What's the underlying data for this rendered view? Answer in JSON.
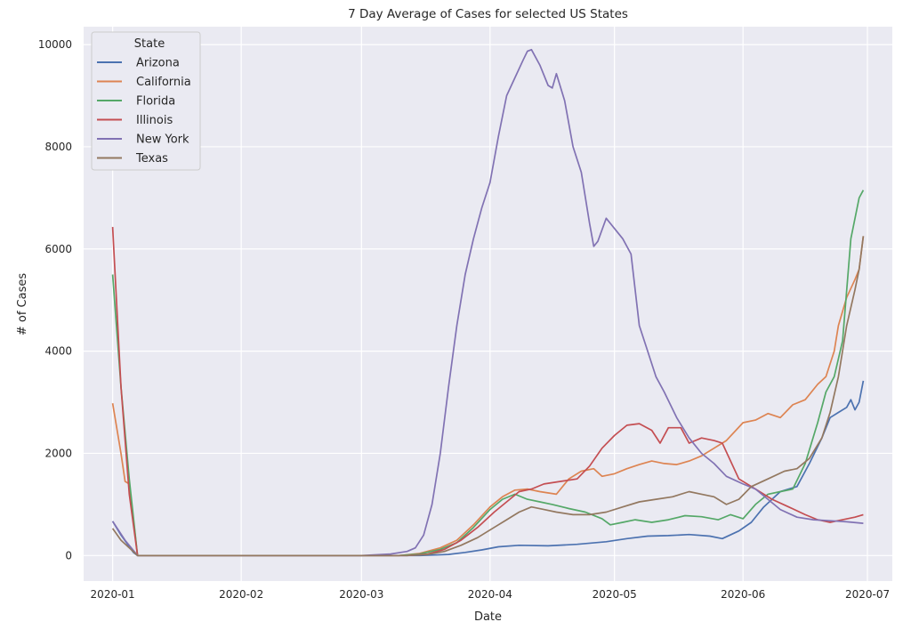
{
  "chart_data": {
    "type": "line",
    "title": "7 Day Average of Cases for selected US States",
    "xlabel": "Date",
    "ylabel": "# of Cases",
    "x_ticks": [
      "2020-01",
      "2020-02",
      "2020-03",
      "2020-04",
      "2020-05",
      "2020-06",
      "2020-07"
    ],
    "y_ticks": [
      "0",
      "2000",
      "4000",
      "6000",
      "8000",
      "10000"
    ],
    "xlim": [
      "2019-12-25",
      "2020-07-07"
    ],
    "ylim": [
      -500,
      10350
    ],
    "grid": true,
    "legend": {
      "title": "State",
      "position": "top-left"
    },
    "series": [
      {
        "name": "Arizona",
        "color": "#4c72b0",
        "points": [
          [
            "2020-01-01",
            670
          ],
          [
            "2020-01-03",
            400
          ],
          [
            "2020-01-06",
            60
          ],
          [
            "2020-01-07",
            0
          ],
          [
            "2020-03-15",
            0
          ],
          [
            "2020-03-22",
            20
          ],
          [
            "2020-03-26",
            60
          ],
          [
            "2020-03-30",
            110
          ],
          [
            "2020-04-03",
            170
          ],
          [
            "2020-04-08",
            200
          ],
          [
            "2020-04-15",
            190
          ],
          [
            "2020-04-22",
            220
          ],
          [
            "2020-04-29",
            270
          ],
          [
            "2020-05-04",
            330
          ],
          [
            "2020-05-09",
            380
          ],
          [
            "2020-05-14",
            390
          ],
          [
            "2020-05-19",
            410
          ],
          [
            "2020-05-24",
            380
          ],
          [
            "2020-05-27",
            330
          ],
          [
            "2020-05-31",
            480
          ],
          [
            "2020-06-03",
            650
          ],
          [
            "2020-06-06",
            950
          ],
          [
            "2020-06-10",
            1250
          ],
          [
            "2020-06-14",
            1350
          ],
          [
            "2020-06-17",
            1800
          ],
          [
            "2020-06-20",
            2300
          ],
          [
            "2020-06-22",
            2700
          ],
          [
            "2020-06-24",
            2800
          ],
          [
            "2020-06-26",
            2900
          ],
          [
            "2020-06-27",
            3050
          ],
          [
            "2020-06-28",
            2850
          ],
          [
            "2020-06-29",
            3000
          ],
          [
            "2020-06-30",
            3420
          ]
        ]
      },
      {
        "name": "California",
        "color": "#dd8452",
        "points": [
          [
            "2020-01-01",
            2980
          ],
          [
            "2020-01-03",
            2000
          ],
          [
            "2020-01-04",
            1450
          ],
          [
            "2020-01-05",
            1400
          ],
          [
            "2020-01-07",
            0
          ],
          [
            "2020-03-10",
            0
          ],
          [
            "2020-03-15",
            40
          ],
          [
            "2020-03-20",
            150
          ],
          [
            "2020-03-24",
            300
          ],
          [
            "2020-03-28",
            600
          ],
          [
            "2020-04-01",
            950
          ],
          [
            "2020-04-04",
            1150
          ],
          [
            "2020-04-07",
            1280
          ],
          [
            "2020-04-10",
            1300
          ],
          [
            "2020-04-13",
            1250
          ],
          [
            "2020-04-17",
            1200
          ],
          [
            "2020-04-20",
            1500
          ],
          [
            "2020-04-23",
            1650
          ],
          [
            "2020-04-26",
            1700
          ],
          [
            "2020-04-28",
            1550
          ],
          [
            "2020-05-01",
            1600
          ],
          [
            "2020-05-04",
            1700
          ],
          [
            "2020-05-07",
            1780
          ],
          [
            "2020-05-10",
            1850
          ],
          [
            "2020-05-13",
            1800
          ],
          [
            "2020-05-16",
            1780
          ],
          [
            "2020-05-19",
            1850
          ],
          [
            "2020-05-22",
            1950
          ],
          [
            "2020-05-25",
            2100
          ],
          [
            "2020-05-28",
            2250
          ],
          [
            "2020-06-01",
            2600
          ],
          [
            "2020-06-04",
            2650
          ],
          [
            "2020-06-07",
            2780
          ],
          [
            "2020-06-10",
            2700
          ],
          [
            "2020-06-13",
            2950
          ],
          [
            "2020-06-16",
            3050
          ],
          [
            "2020-06-19",
            3350
          ],
          [
            "2020-06-21",
            3500
          ],
          [
            "2020-06-23",
            4000
          ],
          [
            "2020-06-24",
            4500
          ],
          [
            "2020-06-26",
            5050
          ],
          [
            "2020-06-28",
            5400
          ],
          [
            "2020-06-29",
            5600
          ],
          [
            "2020-06-30",
            6250
          ]
        ]
      },
      {
        "name": "Florida",
        "color": "#55a868",
        "points": [
          [
            "2020-01-01",
            5500
          ],
          [
            "2020-01-03",
            3300
          ],
          [
            "2020-01-05",
            1500
          ],
          [
            "2020-01-07",
            0
          ],
          [
            "2020-03-10",
            0
          ],
          [
            "2020-03-15",
            30
          ],
          [
            "2020-03-20",
            120
          ],
          [
            "2020-03-24",
            250
          ],
          [
            "2020-03-28",
            550
          ],
          [
            "2020-04-01",
            900
          ],
          [
            "2020-04-04",
            1100
          ],
          [
            "2020-04-07",
            1200
          ],
          [
            "2020-04-10",
            1100
          ],
          [
            "2020-04-13",
            1050
          ],
          [
            "2020-04-16",
            1000
          ],
          [
            "2020-04-20",
            920
          ],
          [
            "2020-04-24",
            850
          ],
          [
            "2020-04-28",
            720
          ],
          [
            "2020-04-30",
            600
          ],
          [
            "2020-05-03",
            650
          ],
          [
            "2020-05-06",
            700
          ],
          [
            "2020-05-10",
            650
          ],
          [
            "2020-05-14",
            700
          ],
          [
            "2020-05-18",
            780
          ],
          [
            "2020-05-22",
            760
          ],
          [
            "2020-05-26",
            700
          ],
          [
            "2020-05-29",
            800
          ],
          [
            "2020-06-01",
            720
          ],
          [
            "2020-06-04",
            1000
          ],
          [
            "2020-06-07",
            1200
          ],
          [
            "2020-06-10",
            1250
          ],
          [
            "2020-06-13",
            1300
          ],
          [
            "2020-06-16",
            1800
          ],
          [
            "2020-06-19",
            2600
          ],
          [
            "2020-06-21",
            3200
          ],
          [
            "2020-06-23",
            3500
          ],
          [
            "2020-06-25",
            4200
          ],
          [
            "2020-06-27",
            6200
          ],
          [
            "2020-06-29",
            7000
          ],
          [
            "2020-06-30",
            7150
          ]
        ]
      },
      {
        "name": "Illinois",
        "color": "#c44e52",
        "points": [
          [
            "2020-01-01",
            6430
          ],
          [
            "2020-01-03",
            3300
          ],
          [
            "2020-01-05",
            1200
          ],
          [
            "2020-01-07",
            0
          ],
          [
            "2020-03-12",
            0
          ],
          [
            "2020-03-17",
            30
          ],
          [
            "2020-03-21",
            120
          ],
          [
            "2020-03-25",
            300
          ],
          [
            "2020-03-29",
            550
          ],
          [
            "2020-04-02",
            850
          ],
          [
            "2020-04-05",
            1050
          ],
          [
            "2020-04-08",
            1250
          ],
          [
            "2020-04-11",
            1300
          ],
          [
            "2020-04-14",
            1400
          ],
          [
            "2020-04-18",
            1450
          ],
          [
            "2020-04-22",
            1500
          ],
          [
            "2020-04-25",
            1750
          ],
          [
            "2020-04-28",
            2100
          ],
          [
            "2020-05-01",
            2350
          ],
          [
            "2020-05-04",
            2550
          ],
          [
            "2020-05-07",
            2580
          ],
          [
            "2020-05-10",
            2450
          ],
          [
            "2020-05-12",
            2200
          ],
          [
            "2020-05-14",
            2500
          ],
          [
            "2020-05-17",
            2500
          ],
          [
            "2020-05-19",
            2200
          ],
          [
            "2020-05-22",
            2300
          ],
          [
            "2020-05-25",
            2250
          ],
          [
            "2020-05-27",
            2200
          ],
          [
            "2020-05-31",
            1500
          ],
          [
            "2020-06-04",
            1300
          ],
          [
            "2020-06-08",
            1100
          ],
          [
            "2020-06-12",
            950
          ],
          [
            "2020-06-16",
            800
          ],
          [
            "2020-06-19",
            700
          ],
          [
            "2020-06-22",
            650
          ],
          [
            "2020-06-25",
            700
          ],
          [
            "2020-06-28",
            750
          ],
          [
            "2020-06-30",
            800
          ]
        ]
      },
      {
        "name": "New York",
        "color": "#8172b3",
        "points": [
          [
            "2020-01-01",
            670
          ],
          [
            "2020-01-04",
            300
          ],
          [
            "2020-01-07",
            0
          ],
          [
            "2020-03-01",
            0
          ],
          [
            "2020-03-08",
            30
          ],
          [
            "2020-03-12",
            80
          ],
          [
            "2020-03-14",
            150
          ],
          [
            "2020-03-16",
            400
          ],
          [
            "2020-03-18",
            1000
          ],
          [
            "2020-03-20",
            2000
          ],
          [
            "2020-03-22",
            3300
          ],
          [
            "2020-03-24",
            4500
          ],
          [
            "2020-03-26",
            5500
          ],
          [
            "2020-03-28",
            6200
          ],
          [
            "2020-03-30",
            6800
          ],
          [
            "2020-04-01",
            7300
          ],
          [
            "2020-04-03",
            8200
          ],
          [
            "2020-04-05",
            9000
          ],
          [
            "2020-04-07",
            9350
          ],
          [
            "2020-04-09",
            9700
          ],
          [
            "2020-04-10",
            9870
          ],
          [
            "2020-04-11",
            9900
          ],
          [
            "2020-04-13",
            9600
          ],
          [
            "2020-04-15",
            9200
          ],
          [
            "2020-04-16",
            9150
          ],
          [
            "2020-04-17",
            9430
          ],
          [
            "2020-04-19",
            8900
          ],
          [
            "2020-04-21",
            8000
          ],
          [
            "2020-04-23",
            7500
          ],
          [
            "2020-04-25",
            6500
          ],
          [
            "2020-04-26",
            6050
          ],
          [
            "2020-04-27",
            6150
          ],
          [
            "2020-04-29",
            6600
          ],
          [
            "2020-05-01",
            6400
          ],
          [
            "2020-05-03",
            6200
          ],
          [
            "2020-05-05",
            5900
          ],
          [
            "2020-05-07",
            4500
          ],
          [
            "2020-05-09",
            4000
          ],
          [
            "2020-05-11",
            3500
          ],
          [
            "2020-05-13",
            3200
          ],
          [
            "2020-05-16",
            2700
          ],
          [
            "2020-05-19",
            2300
          ],
          [
            "2020-05-22",
            2000
          ],
          [
            "2020-05-25",
            1800
          ],
          [
            "2020-05-28",
            1550
          ],
          [
            "2020-06-01",
            1400
          ],
          [
            "2020-06-04",
            1300
          ],
          [
            "2020-06-07",
            1100
          ],
          [
            "2020-06-10",
            900
          ],
          [
            "2020-06-14",
            750
          ],
          [
            "2020-06-18",
            700
          ],
          [
            "2020-06-22",
            680
          ],
          [
            "2020-06-26",
            660
          ],
          [
            "2020-06-30",
            630
          ]
        ]
      },
      {
        "name": "Texas",
        "color": "#937860",
        "points": [
          [
            "2020-01-01",
            530
          ],
          [
            "2020-01-03",
            300
          ],
          [
            "2020-01-07",
            0
          ],
          [
            "2020-03-12",
            0
          ],
          [
            "2020-03-17",
            20
          ],
          [
            "2020-03-21",
            80
          ],
          [
            "2020-03-25",
            200
          ],
          [
            "2020-03-29",
            350
          ],
          [
            "2020-04-02",
            550
          ],
          [
            "2020-04-05",
            700
          ],
          [
            "2020-04-08",
            850
          ],
          [
            "2020-04-11",
            950
          ],
          [
            "2020-04-14",
            900
          ],
          [
            "2020-04-17",
            850
          ],
          [
            "2020-04-21",
            800
          ],
          [
            "2020-04-25",
            800
          ],
          [
            "2020-04-29",
            850
          ],
          [
            "2020-05-03",
            950
          ],
          [
            "2020-05-07",
            1050
          ],
          [
            "2020-05-11",
            1100
          ],
          [
            "2020-05-15",
            1150
          ],
          [
            "2020-05-19",
            1250
          ],
          [
            "2020-05-22",
            1200
          ],
          [
            "2020-05-25",
            1150
          ],
          [
            "2020-05-28",
            1000
          ],
          [
            "2020-05-31",
            1100
          ],
          [
            "2020-06-03",
            1350
          ],
          [
            "2020-06-07",
            1500
          ],
          [
            "2020-06-11",
            1650
          ],
          [
            "2020-06-14",
            1700
          ],
          [
            "2020-06-17",
            1900
          ],
          [
            "2020-06-20",
            2300
          ],
          [
            "2020-06-22",
            2800
          ],
          [
            "2020-06-24",
            3500
          ],
          [
            "2020-06-26",
            4500
          ],
          [
            "2020-06-28",
            5200
          ],
          [
            "2020-06-29",
            5600
          ],
          [
            "2020-06-30",
            6250
          ]
        ]
      }
    ]
  }
}
